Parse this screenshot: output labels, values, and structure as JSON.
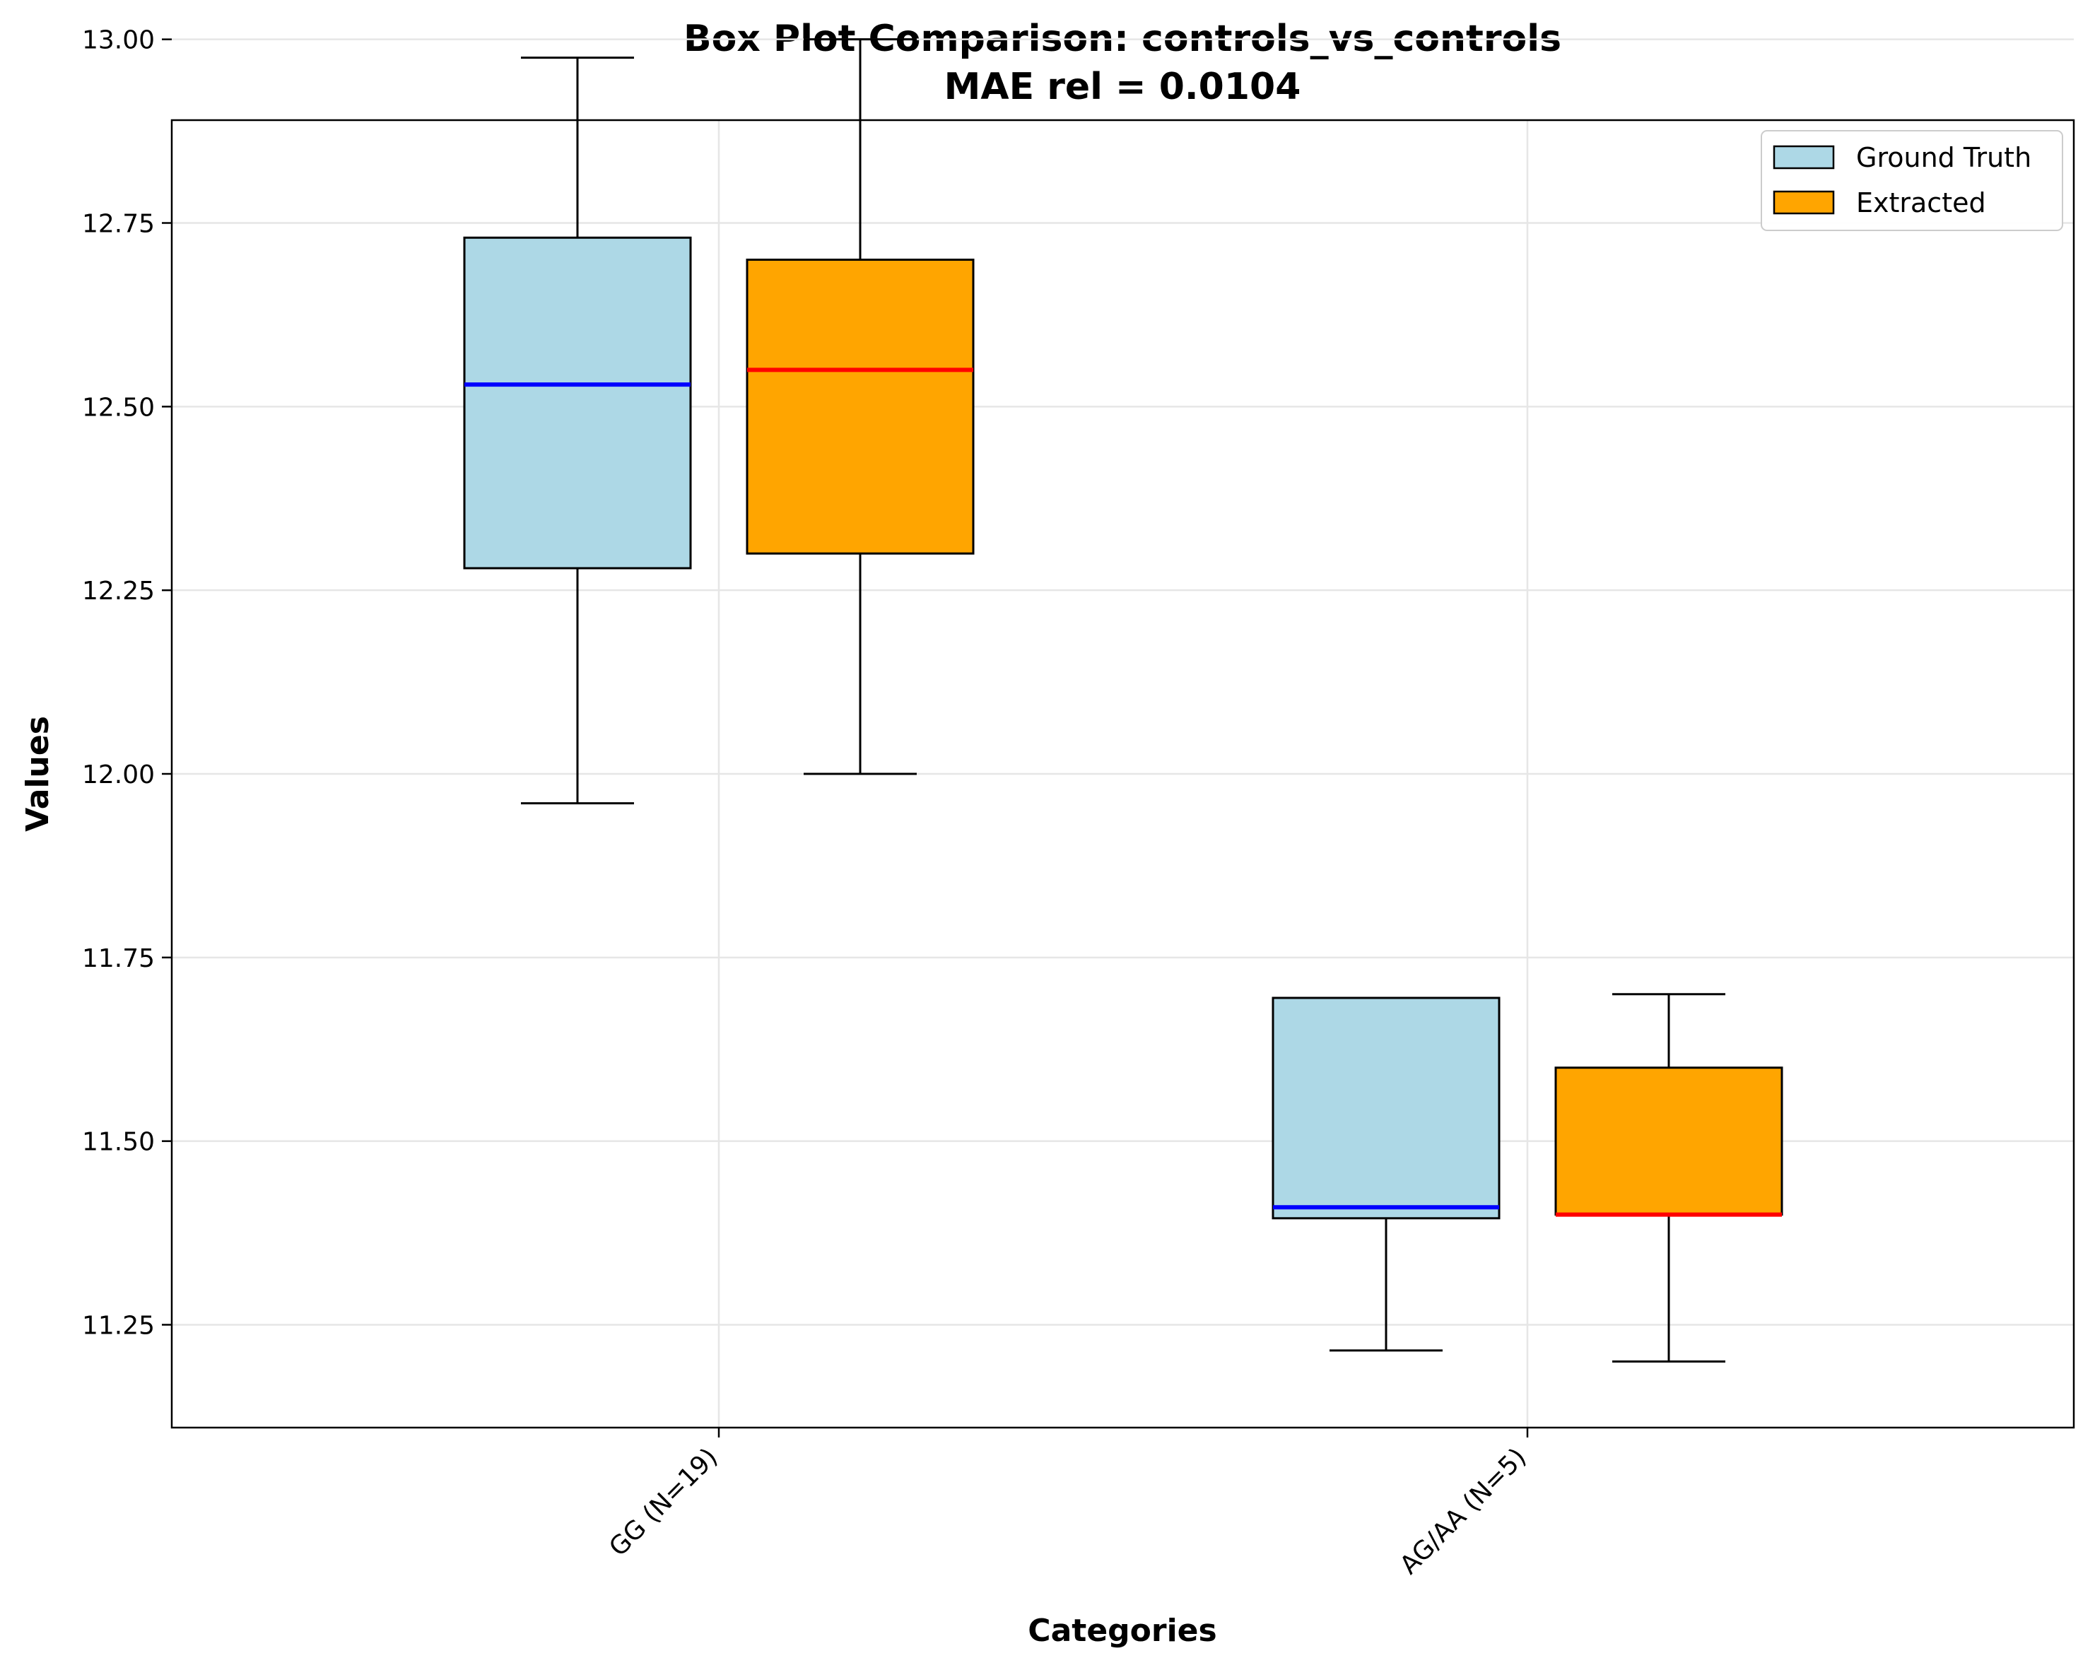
{
  "chart_data": {
    "type": "box",
    "title": "Box Plot Comparison: controls_vs_controls",
    "subtitle": "MAE rel = 0.0104",
    "xlabel": "Categories",
    "ylabel": "Values",
    "ylim": [
      11.11,
      12.89
    ],
    "yticks": [
      "11.25",
      "11.50",
      "11.75",
      "12.00",
      "12.25",
      "12.50",
      "12.75",
      "13.00"
    ],
    "categories": [
      "GG (N=19)",
      "AG/AA (N=5)"
    ],
    "grid": true,
    "legend_position": "top-right",
    "series": [
      {
        "name": "Ground Truth",
        "fill": "#add8e6",
        "median_color": "#0000ff",
        "boxes": [
          {
            "whislo": 11.96,
            "q1": 12.28,
            "median": 12.53,
            "q3": 12.73,
            "whishi": 12.975
          },
          {
            "whislo": 11.215,
            "q1": 11.395,
            "median": 11.41,
            "q3": 11.695,
            "whishi": 11.695
          }
        ]
      },
      {
        "name": "Extracted",
        "fill": "#ffa500",
        "median_color": "#ff0000",
        "boxes": [
          {
            "whislo": 12.0,
            "q1": 12.3,
            "median": 12.55,
            "q3": 12.7,
            "whishi": 13.0
          },
          {
            "whislo": 11.2,
            "q1": 11.4,
            "median": 11.4,
            "q3": 11.6,
            "whishi": 11.7
          }
        ]
      }
    ]
  }
}
